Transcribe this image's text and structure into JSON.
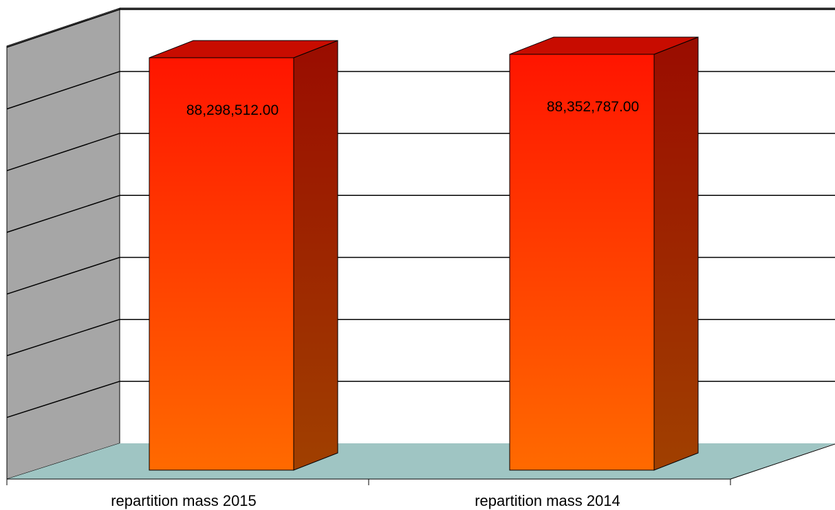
{
  "chart_data": {
    "type": "bar",
    "categories": [
      "repartition mass 2015",
      "repartition mass 2014"
    ],
    "values": [
      88298512,
      88352787
    ],
    "data_labels": [
      "88,298,512.00",
      "88,352,787.00"
    ],
    "title": "",
    "xlabel": "",
    "ylabel": "",
    "ylim": [
      81800000,
      88450000
    ],
    "grid": true,
    "legend": "none",
    "three_d": true,
    "colors": {
      "bar_top": "#ff1500",
      "bar_bottom": "#ff6a00",
      "bar_side_top": "#9a0c00",
      "bar_side_bottom": "#a04000",
      "bar_cap": "#c80c00",
      "floor": "#9fc5c3",
      "side_wall": "#a6a6a6",
      "grid": "#000000"
    }
  }
}
